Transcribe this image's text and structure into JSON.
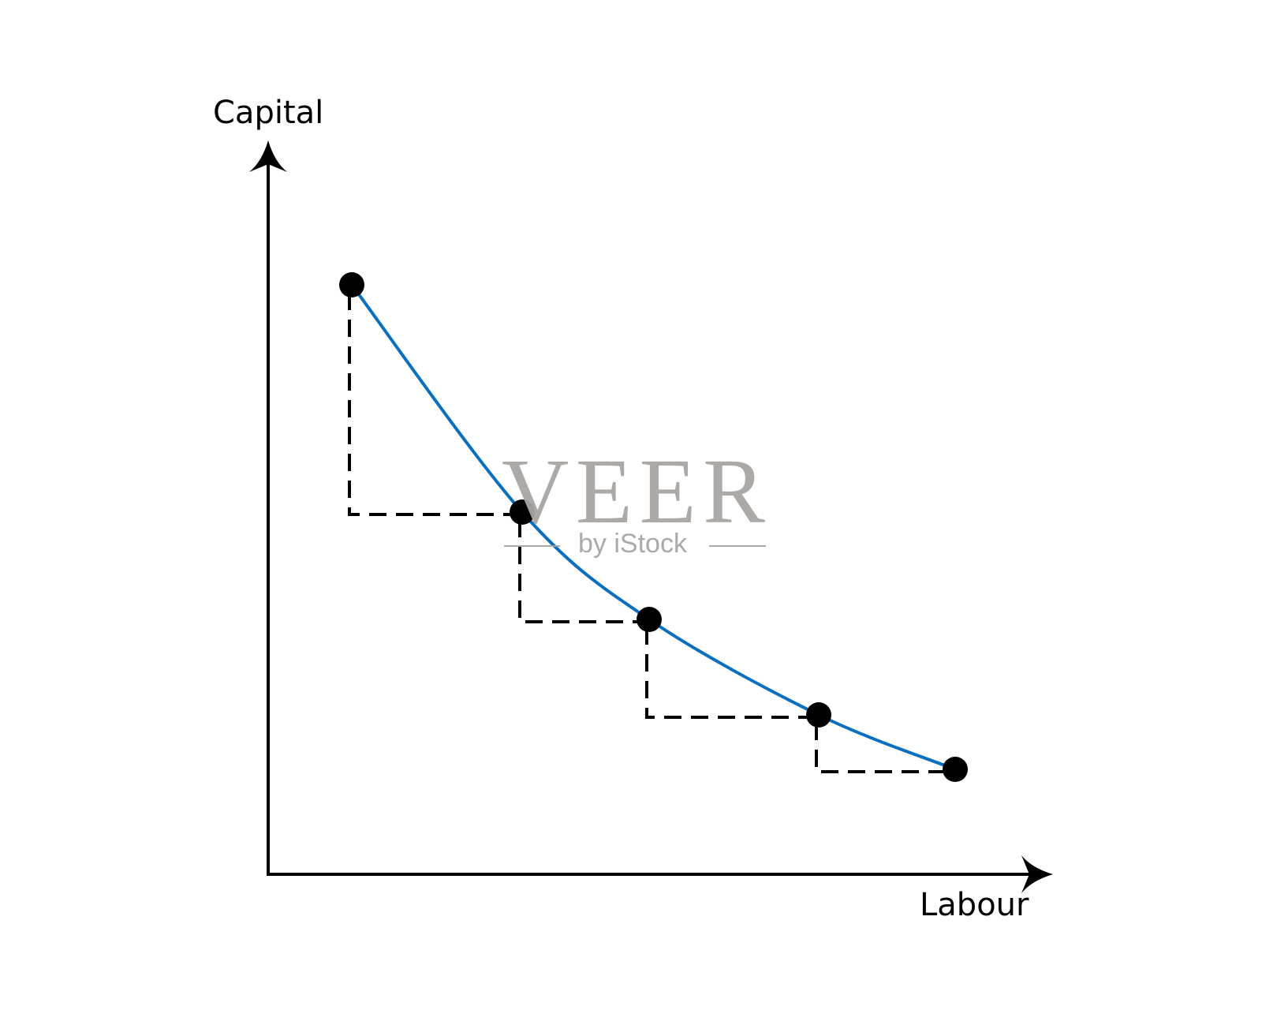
{
  "diagram": {
    "y_axis_label": "Capital",
    "x_axis_label": "Labour",
    "points_count": 5,
    "curve_color": "#0a6fbf",
    "point_color": "#000000",
    "guide_style": "dashed"
  },
  "watermark": {
    "brand": "VEER",
    "tagline": "by iStock",
    "color": "#a8a5a2"
  }
}
